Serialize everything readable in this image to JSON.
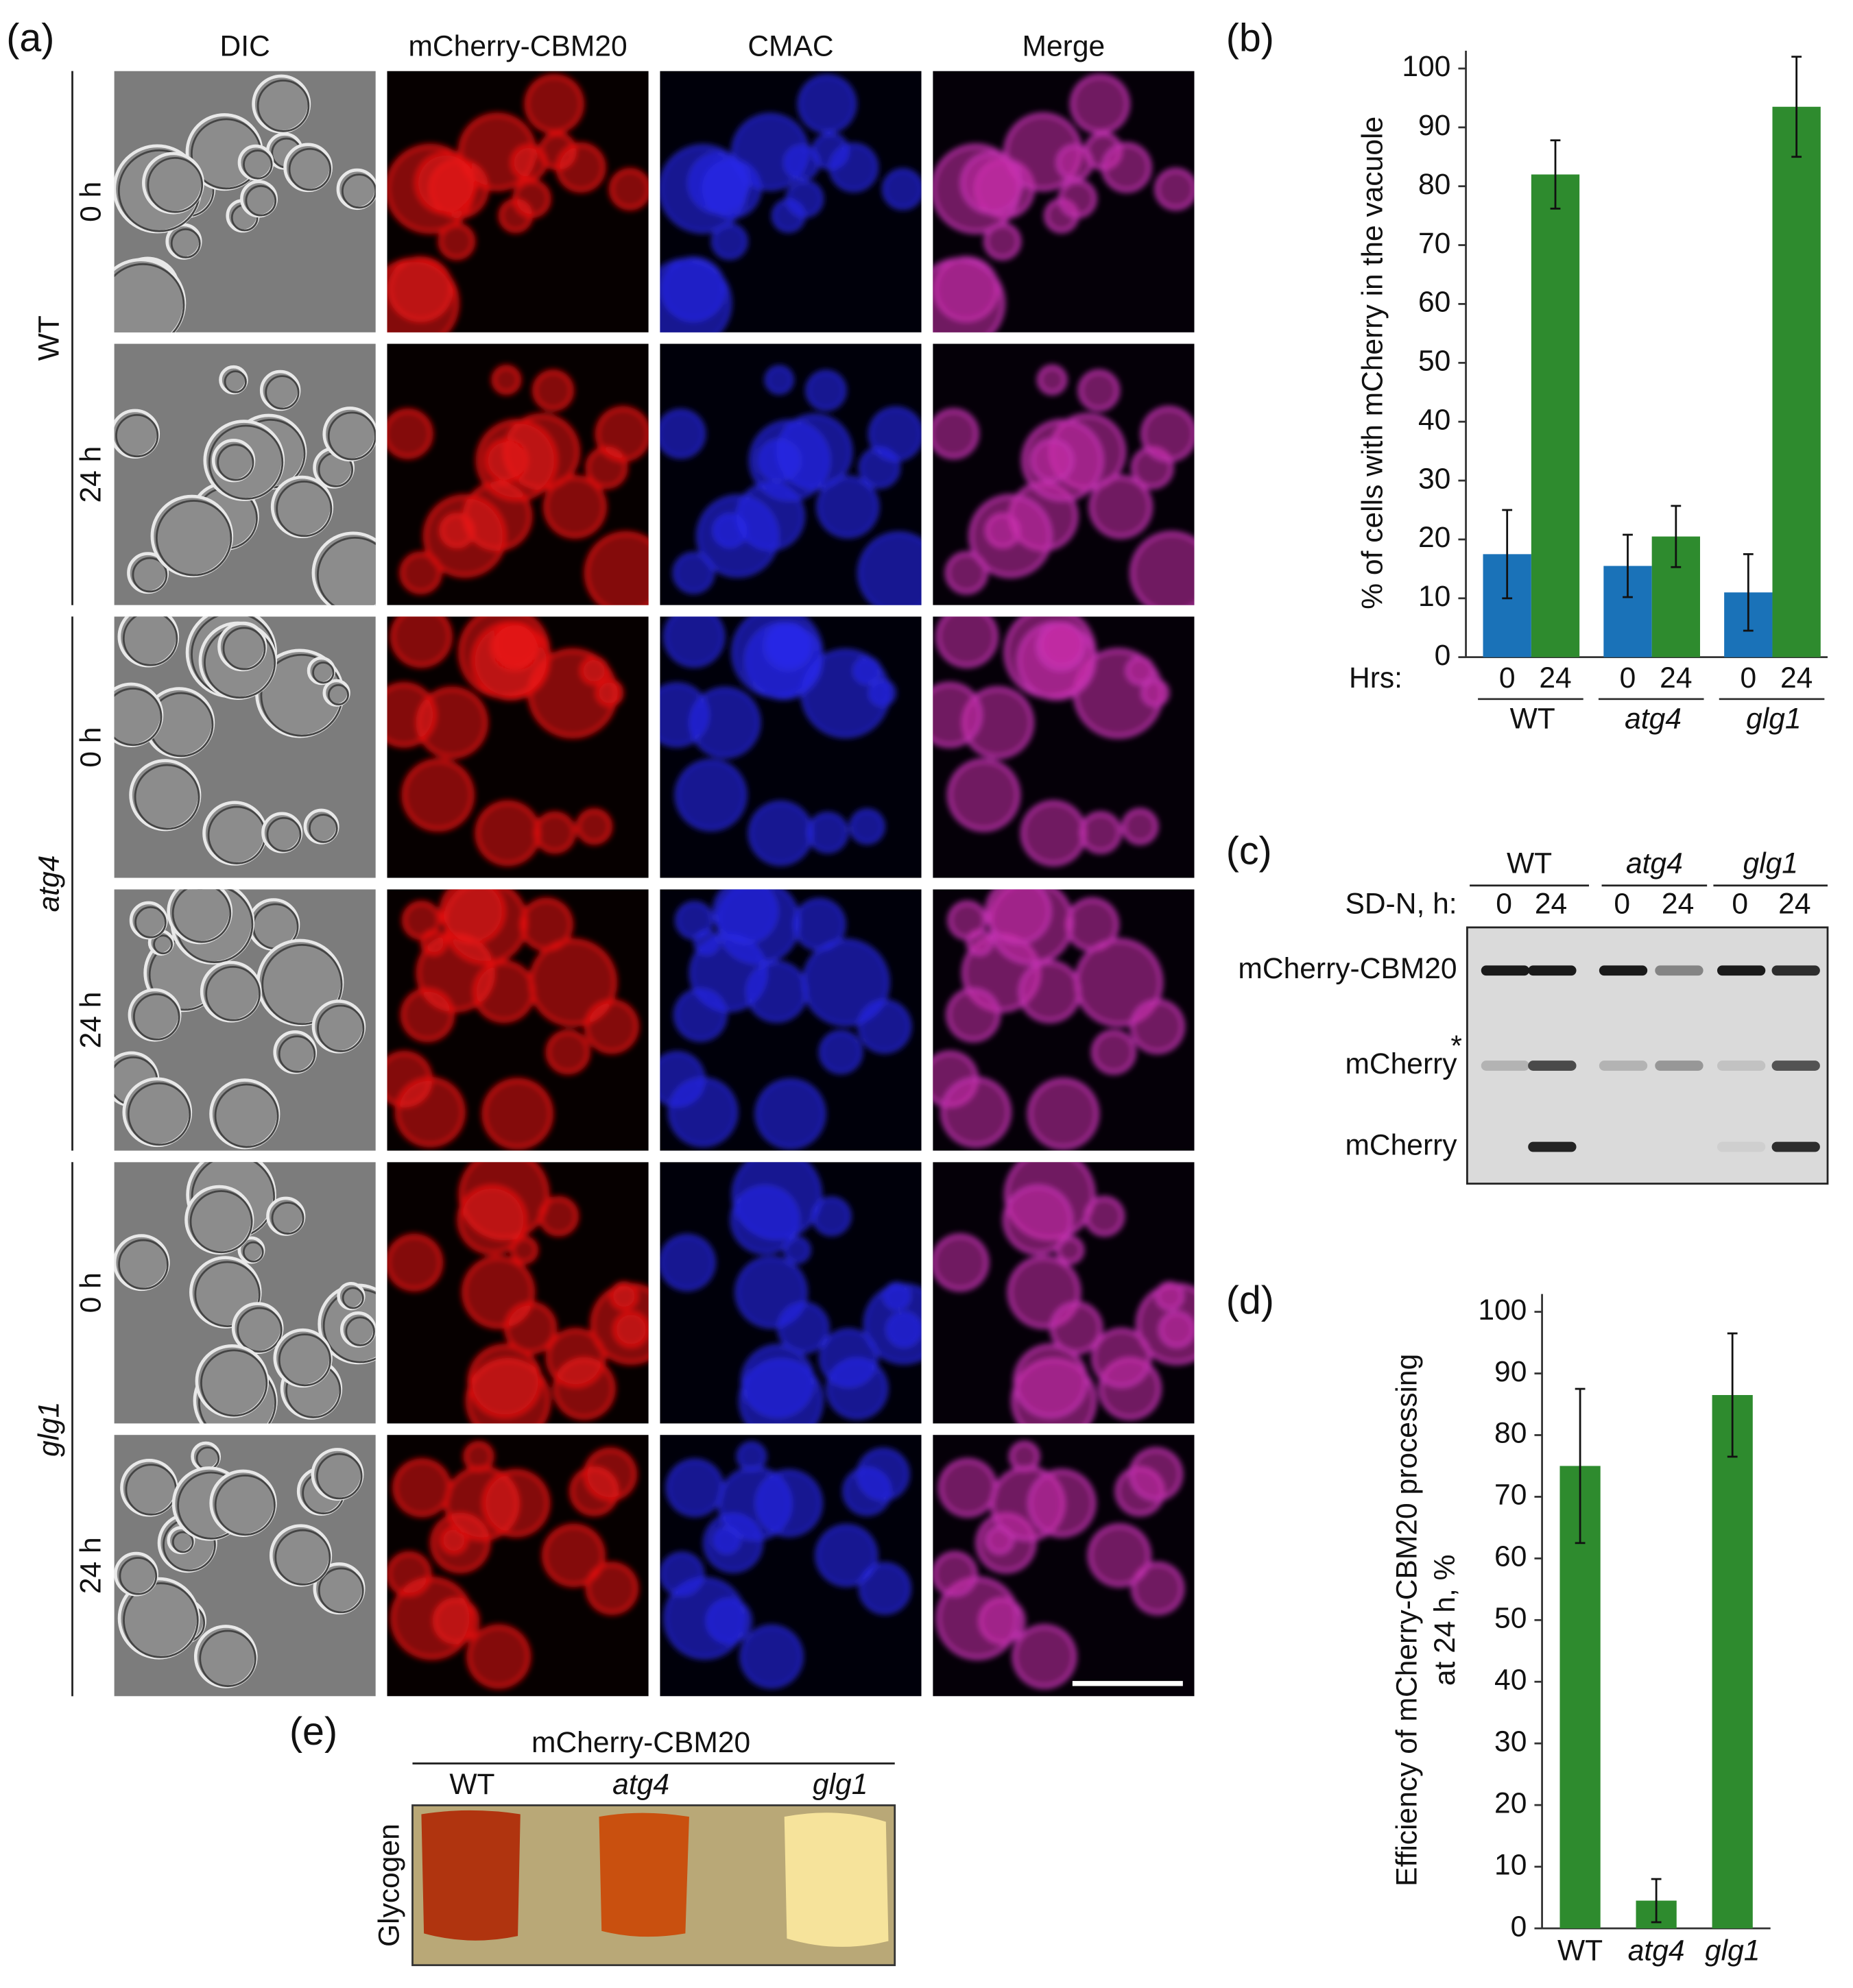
{
  "panels": {
    "a": "(a)",
    "b": "(b)",
    "c": "(c)",
    "d": "(d)",
    "e": "(e)"
  },
  "microscopy": {
    "columns": [
      "DIC",
      "mCherry-CBM20",
      "CMAC",
      "Merge"
    ],
    "strains": [
      "WT",
      "atg4",
      "glg1"
    ],
    "times": [
      "0 h",
      "24 h"
    ]
  },
  "chart_data": [
    {
      "type": "bar",
      "y_label": "% of cells with mCherry in the vacuole",
      "x_label": "Hrs:",
      "categories": [
        "WT",
        "atg4",
        "glg1"
      ],
      "series": [
        {
          "name": "0",
          "color": "#1a72b8",
          "values": [
            17.5,
            15.5,
            11
          ],
          "errors": [
            7.5,
            5.3,
            6.5
          ]
        },
        {
          "name": "24",
          "color": "#2e8b2e",
          "values": [
            82,
            20.5,
            93.5
          ],
          "errors": [
            5.8,
            5.2,
            8.5
          ]
        }
      ],
      "ylim": [
        0,
        100
      ],
      "yticks": [
        0,
        10,
        20,
        30,
        40,
        50,
        60,
        70,
        80,
        90,
        100
      ]
    },
    {
      "type": "bar",
      "y_label": [
        "Efficiency of mCherry-CBM20 processing",
        "at 24 h, %"
      ],
      "categories": [
        "WT",
        "atg4",
        "glg1"
      ],
      "values": [
        75,
        4.5,
        86.5
      ],
      "errors": [
        12.5,
        3.5,
        10
      ],
      "color": "#2e8b2e",
      "ylim": [
        0,
        100
      ],
      "yticks": [
        0,
        10,
        20,
        30,
        40,
        50,
        60,
        70,
        80,
        90,
        100
      ]
    }
  ],
  "blot": {
    "groups": [
      "WT",
      "atg4",
      "glg1"
    ],
    "row_label": "SD-N, h:",
    "lanes": [
      "0",
      "24",
      "0",
      "24",
      "0",
      "24"
    ],
    "bands": [
      "mCherry-CBM20",
      "mCherry",
      "mCherry"
    ],
    "band_mark": "*"
  },
  "plate": {
    "title": "mCherry-CBM20",
    "strains": [
      "WT",
      "atg4",
      "glg1"
    ],
    "row_label": "Glycogen"
  }
}
